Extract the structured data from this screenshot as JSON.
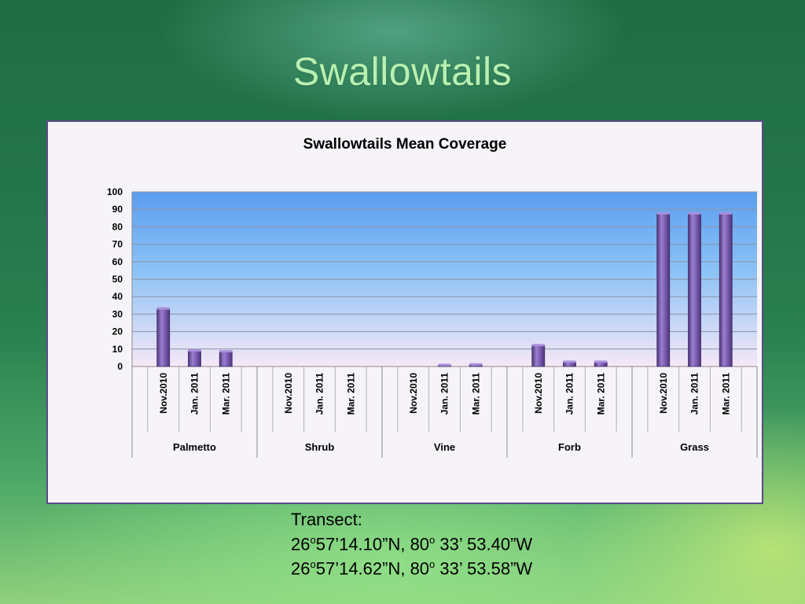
{
  "slide": {
    "title": "Swallowtails"
  },
  "chart_data": {
    "type": "bar",
    "title": "Swallowtails Mean Coverage",
    "xlabel": "",
    "ylabel": "",
    "ylim": [
      0,
      100
    ],
    "yticks": [
      0,
      10,
      20,
      30,
      40,
      50,
      60,
      70,
      80,
      90,
      100
    ],
    "grid": true,
    "groups": [
      {
        "name": "Palmetto",
        "categories": [
          "Nov.2010",
          "Jan. 2011",
          "Mar. 2011"
        ],
        "values": [
          33,
          9,
          8.5
        ]
      },
      {
        "name": "Shrub",
        "categories": [
          "Nov.2010",
          "Jan. 2011",
          "Mar. 2011"
        ],
        "values": [
          0,
          0,
          0
        ]
      },
      {
        "name": "Vine",
        "categories": [
          "Nov.2010",
          "Jan. 2011",
          "Mar. 2011"
        ],
        "values": [
          0,
          0.5,
          1
        ]
      },
      {
        "name": "Forb",
        "categories": [
          "Nov.2010",
          "Jan. 2011",
          "Mar. 2011"
        ],
        "values": [
          12,
          2.5,
          2.5
        ]
      },
      {
        "name": "Grass",
        "categories": [
          "Nov.2010",
          "Jan. 2011",
          "Mar. 2011"
        ],
        "values": [
          87.5,
          87.5,
          87.5
        ]
      }
    ],
    "colors": {
      "bar": "#7a5bb0",
      "bar_dark": "#4d3578",
      "plot_top": "#5b9ef0",
      "plot_bottom": "#f6e8f6"
    }
  },
  "transect": {
    "label": "Transect:",
    "lines": [
      {
        "lat_deg": "26",
        "lat_rest": "57’14.10”N, 80",
        "lon_rest": " 33’ 53.40”W"
      },
      {
        "lat_deg": "26",
        "lat_rest": "57’14.62”N, 80",
        "lon_rest": " 33’ 53.58”W"
      }
    ],
    "degree_mark": "o"
  }
}
